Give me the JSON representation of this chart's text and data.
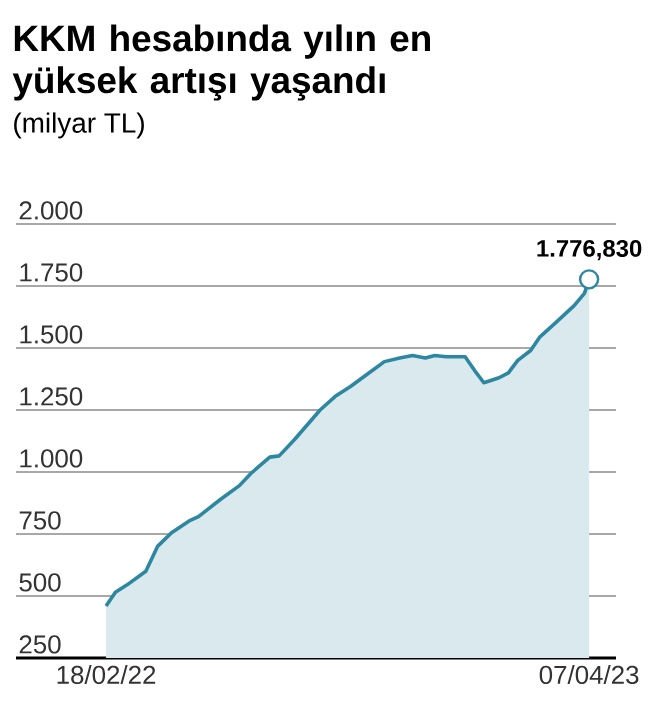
{
  "chart_data": {
    "type": "area",
    "title": "KKM hesabında yılın en yüksek artışı yaşandı",
    "subtitle": "(milyar TL)",
    "x": [
      "2022-02-18",
      "2022-02-26",
      "2022-03-08",
      "2022-03-24",
      "2022-04-03",
      "2022-04-15",
      "2022-05-01",
      "2022-05-08",
      "2022-05-27",
      "2022-06-12",
      "2022-06-22",
      "2022-07-08",
      "2022-07-16",
      "2022-07-29",
      "2022-08-20",
      "2022-09-02",
      "2022-09-15",
      "2022-10-01",
      "2022-10-14",
      "2022-10-27",
      "2022-11-07",
      "2022-11-18",
      "2022-11-26",
      "2022-12-06",
      "2022-12-22",
      "2022-12-30",
      "2023-01-07",
      "2023-01-20",
      "2023-01-28",
      "2023-02-05",
      "2023-02-16",
      "2023-02-24",
      "2023-03-09",
      "2023-03-25",
      "2023-04-03",
      "2023-04-07"
    ],
    "values": [
      460,
      515,
      545,
      600,
      700,
      755,
      805,
      820,
      890,
      945,
      995,
      1060,
      1065,
      1130,
      1250,
      1305,
      1345,
      1400,
      1445,
      1460,
      1470,
      1460,
      1470,
      1465,
      1465,
      1410,
      1360,
      1380,
      1400,
      1450,
      1490,
      1545,
      1600,
      1670,
      1720,
      1776.83
    ],
    "color": "#2e87a0",
    "xlim": [
      "2021-12-03",
      "2023-04-30"
    ],
    "xticks": [
      {
        "value": "2022-02-18",
        "label": "18/02/22"
      },
      {
        "value": "2023-04-07",
        "label": "07/04/23"
      }
    ],
    "ylim": [
      250,
      2000
    ],
    "yticks": [
      250,
      500,
      750,
      {
        "value": 1000,
        "label": "1.000"
      },
      {
        "value": 1250,
        "label": "1.250"
      },
      {
        "value": 1500,
        "label": "1.500"
      },
      {
        "value": 1750,
        "label": "1.750"
      },
      {
        "value": 2000,
        "label": "2.000"
      }
    ],
    "grid": "y",
    "annotations": [
      {
        "text": "1.776,830",
        "x": "2023-04-07",
        "y": 1776.83
      }
    ]
  }
}
